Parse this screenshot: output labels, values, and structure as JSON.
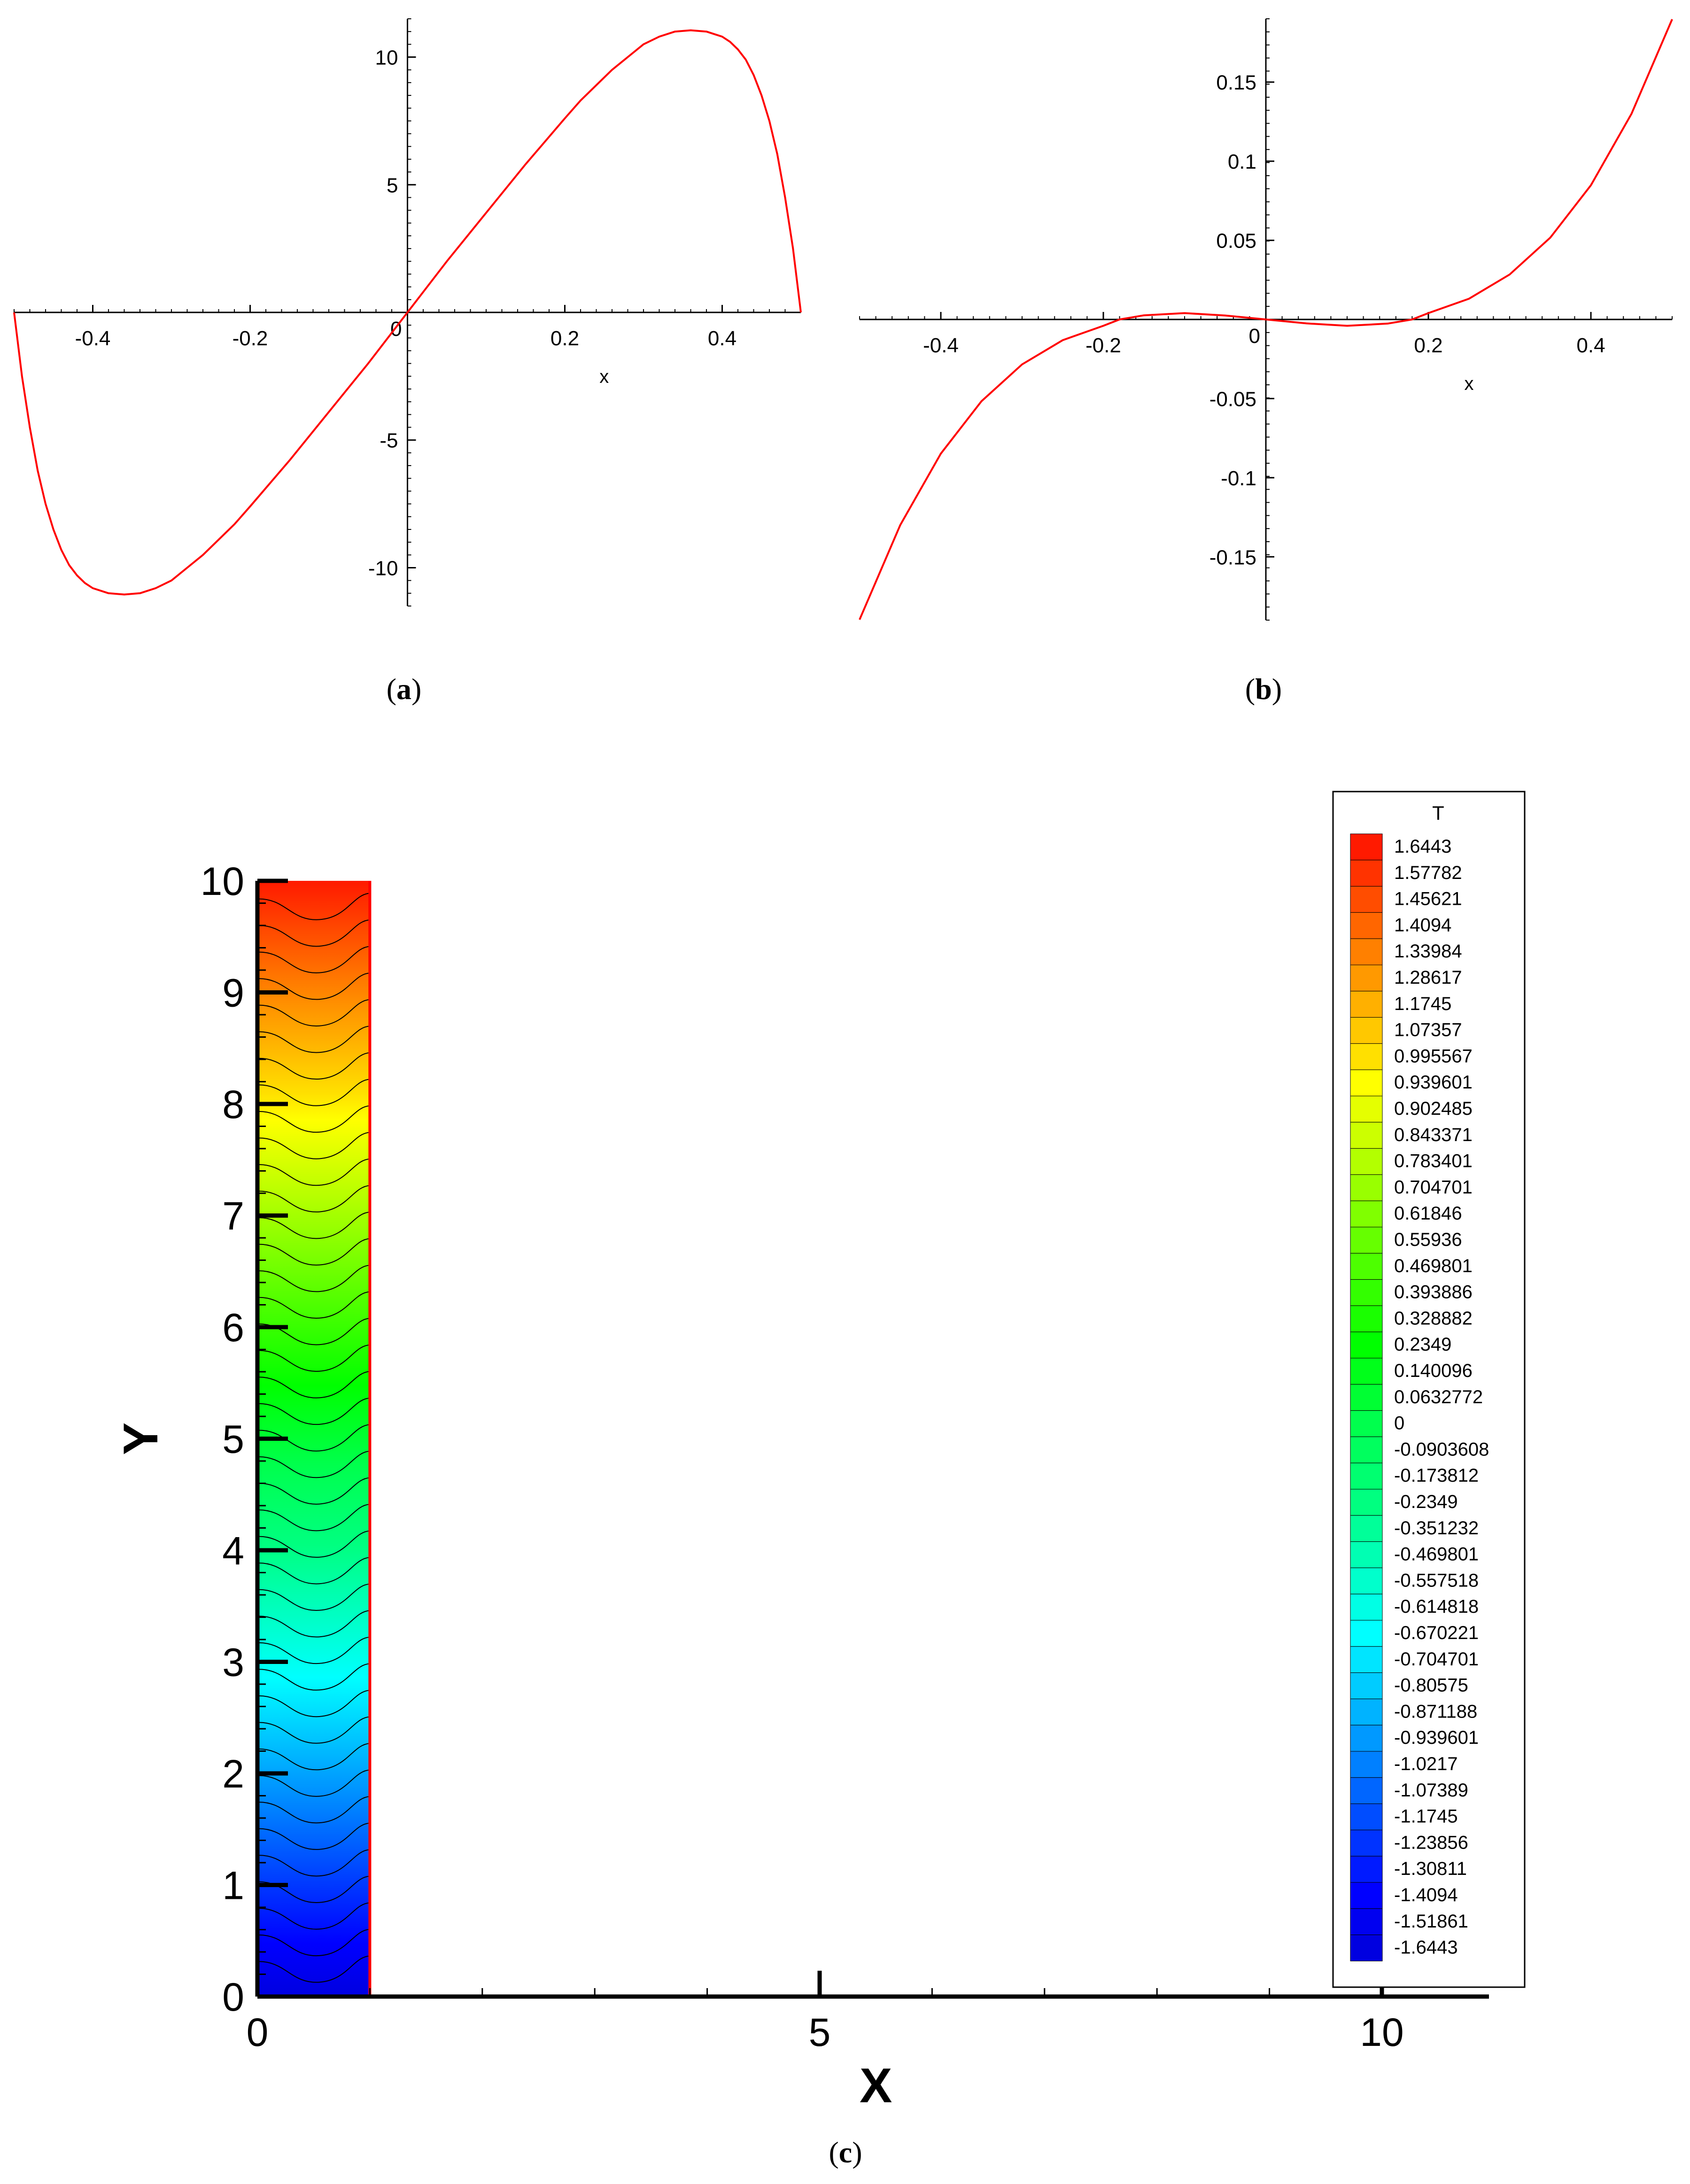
{
  "captions": {
    "a": {
      "open": "(",
      "letter": "a",
      "close": ")"
    },
    "b": {
      "open": "(",
      "letter": "b",
      "close": ")"
    },
    "c": {
      "open": "(",
      "letter": "c",
      "close": ")"
    }
  },
  "chart_data": [
    {
      "id": "a",
      "type": "line",
      "title": "",
      "xlabel": "x",
      "ylabel": "",
      "xlim": [
        -0.5,
        0.5
      ],
      "ylim": [
        -11.5,
        11.5
      ],
      "xticks": [
        -0.4,
        -0.2,
        0.2,
        0.4
      ],
      "xtick_labels": [
        "-0.4",
        "-0.2",
        "0.2",
        "0.4"
      ],
      "yticks": [
        -10,
        -5,
        5,
        10
      ],
      "ytick_labels": [
        "-10",
        "-5",
        "5",
        "10"
      ],
      "origin_label": "0",
      "line_color": "#ff0000",
      "series": [
        {
          "x": [
            -0.5,
            -0.49,
            -0.48,
            -0.47,
            -0.46,
            -0.45,
            -0.44,
            -0.43,
            -0.42,
            -0.41,
            -0.4,
            -0.38,
            -0.36,
            -0.34,
            -0.32,
            -0.3,
            -0.28,
            -0.26,
            -0.24,
            -0.22,
            -0.2,
            -0.15,
            -0.1,
            -0.05,
            0,
            0.05,
            0.1,
            0.15,
            0.2,
            0.22,
            0.24,
            0.26,
            0.28,
            0.3,
            0.32,
            0.34,
            0.36,
            0.38,
            0.4,
            0.41,
            0.42,
            0.43,
            0.44,
            0.45,
            0.46,
            0.47,
            0.48,
            0.49,
            0.5
          ],
          "y": [
            0,
            -2.5,
            -4.5,
            -6.2,
            -7.5,
            -8.5,
            -9.3,
            -9.9,
            -10.3,
            -10.6,
            -10.8,
            -11.0,
            -11.05,
            -11.0,
            -10.8,
            -10.5,
            -10.0,
            -9.5,
            -8.9,
            -8.3,
            -7.6,
            -5.8,
            -3.9,
            -2.0,
            0,
            2.0,
            3.9,
            5.8,
            7.6,
            8.3,
            8.9,
            9.5,
            10.0,
            10.5,
            10.8,
            11.0,
            11.05,
            11.0,
            10.8,
            10.6,
            10.3,
            9.9,
            9.3,
            8.5,
            7.5,
            6.2,
            4.5,
            2.5,
            0
          ]
        }
      ]
    },
    {
      "id": "b",
      "type": "line",
      "title": "",
      "xlabel": "x",
      "ylabel": "",
      "xlim": [
        -0.5,
        0.5
      ],
      "ylim": [
        -0.19,
        0.19
      ],
      "xticks": [
        -0.4,
        -0.2,
        0.2,
        0.4
      ],
      "xtick_labels": [
        "-0.4",
        "-0.2",
        "0.2",
        "0.4"
      ],
      "yticks": [
        -0.15,
        -0.1,
        -0.05,
        0.05,
        0.1,
        0.15
      ],
      "ytick_labels": [
        "-0.15",
        "-0.1",
        "-0.05",
        "0.05",
        "0.1",
        "0.15"
      ],
      "origin_label": "0",
      "line_color": "#ff0000",
      "series": [
        {
          "x": [
            -0.5,
            -0.45,
            -0.4,
            -0.35,
            -0.3,
            -0.25,
            -0.2,
            -0.18,
            -0.15,
            -0.1,
            -0.05,
            0,
            0.05,
            0.1,
            0.15,
            0.18,
            0.2,
            0.25,
            0.3,
            0.35,
            0.4,
            0.45,
            0.5
          ],
          "y": [
            -0.1897,
            -0.13,
            -0.0848,
            -0.0517,
            -0.0284,
            -0.0131,
            -0.004,
            0.0,
            0.0026,
            0.004,
            0.0025,
            0,
            -0.0025,
            -0.004,
            -0.0026,
            0.0,
            0.004,
            0.0131,
            0.0284,
            0.0517,
            0.0848,
            0.13,
            0.1897
          ]
        }
      ]
    },
    {
      "id": "c",
      "type": "heatmap",
      "title": "",
      "xlabel": "X",
      "ylabel": "Y",
      "xlim": [
        0,
        11
      ],
      "ylim": [
        0,
        10
      ],
      "xticks_major": [
        0,
        5,
        10
      ],
      "xtick_labels": [
        "0",
        "5",
        "10"
      ],
      "yticks_major": [
        0,
        1,
        2,
        3,
        4,
        5,
        6,
        7,
        8,
        9,
        10
      ],
      "ytick_labels": [
        "0",
        "1",
        "2",
        "3",
        "4",
        "5",
        "6",
        "7",
        "8",
        "9",
        "10"
      ],
      "field_extent": {
        "x": [
          0,
          1
        ],
        "y": [
          0,
          10
        ]
      },
      "legend": {
        "title": "T",
        "position": "right",
        "levels": [
          "1.6443",
          "1.57782",
          "1.45621",
          "1.4094",
          "1.33984",
          "1.28617",
          "1.1745",
          "1.07357",
          "0.995567",
          "0.939601",
          "0.902485",
          "0.843371",
          "0.783401",
          "0.704701",
          "0.61846",
          "0.55936",
          "0.469801",
          "0.393886",
          "0.328882",
          "0.2349",
          "0.140096",
          "0.0632772",
          "0",
          "-0.0903608",
          "-0.173812",
          "-0.2349",
          "-0.351232",
          "-0.469801",
          "-0.557518",
          "-0.614818",
          "-0.670221",
          "-0.704701",
          "-0.80575",
          "-0.871188",
          "-0.939601",
          "-1.0217",
          "-1.07389",
          "-1.1745",
          "-1.23856",
          "-1.30811",
          "-1.4094",
          "-1.51861",
          "-1.6443"
        ],
        "colors": [
          "#ff1a00",
          "#ff3300",
          "#ff4d00",
          "#ff6600",
          "#ff8000",
          "#ff9900",
          "#ffb000",
          "#ffc800",
          "#ffe000",
          "#ffff00",
          "#e5ff00",
          "#ccff00",
          "#b3ff00",
          "#99ff00",
          "#80ff00",
          "#66ff00",
          "#4dff00",
          "#33ff00",
          "#1aff00",
          "#00ff00",
          "#00ff1a",
          "#00ff33",
          "#00ff4d",
          "#00ff5e",
          "#00ff70",
          "#00ff80",
          "#00ff99",
          "#00ffb3",
          "#00ffcc",
          "#00ffe5",
          "#00ffff",
          "#00e5ff",
          "#00ccff",
          "#00b3ff",
          "#0099ff",
          "#0080ff",
          "#0066ff",
          "#004dff",
          "#0033ff",
          "#001aff",
          "#0000ff",
          "#0000f0",
          "#0000e0"
        ]
      }
    }
  ]
}
